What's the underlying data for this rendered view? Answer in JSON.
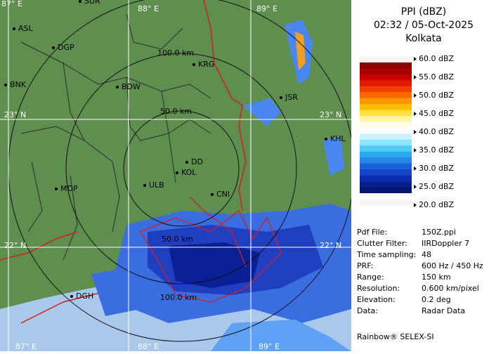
{
  "map": {
    "labels": [
      "87° E",
      "SUR",
      "88° E",
      "89° E",
      "ASL",
      "DGP",
      "100.0 km",
      "KRG",
      "BDW",
      "BNK",
      "JSR",
      "23° N",
      "50.0 km",
      "23° N",
      "KHL",
      "DD",
      "KOL",
      "MDP",
      "ULB",
      "CNI",
      "22° N",
      "50.0 km",
      "22° N",
      "DGH",
      "100.0 km",
      "87° E",
      "88° E",
      "89° E"
    ]
  },
  "panel": {
    "title": "PPI (dBZ)",
    "datetime": "02:32 / 05-Oct-2025",
    "station": "Kolkata",
    "scale": [
      "60.0 dBZ",
      "55.0 dBZ",
      "50.0 dBZ",
      "45.0 dBZ",
      "40.0 dBZ",
      "35.0 dBZ",
      "30.0 dBZ",
      "25.0 dBZ",
      "20.0 dBZ"
    ],
    "info": [
      [
        "Pdf File:",
        "150Z.ppi"
      ],
      [
        "Clutter Filter:",
        "IIRDoppler 7"
      ],
      [
        "Time sampling:",
        "48"
      ],
      [
        "PRF:",
        "600 Hz / 450 Hz"
      ],
      [
        "Range:",
        "150 km"
      ],
      [
        "Resolution:",
        "0.600 km/pixel"
      ],
      [
        "Elevation:",
        "0.2 deg"
      ],
      [
        "Data:",
        "Radar Data"
      ]
    ],
    "footer": "Rainbow® SELEX-SI"
  }
}
